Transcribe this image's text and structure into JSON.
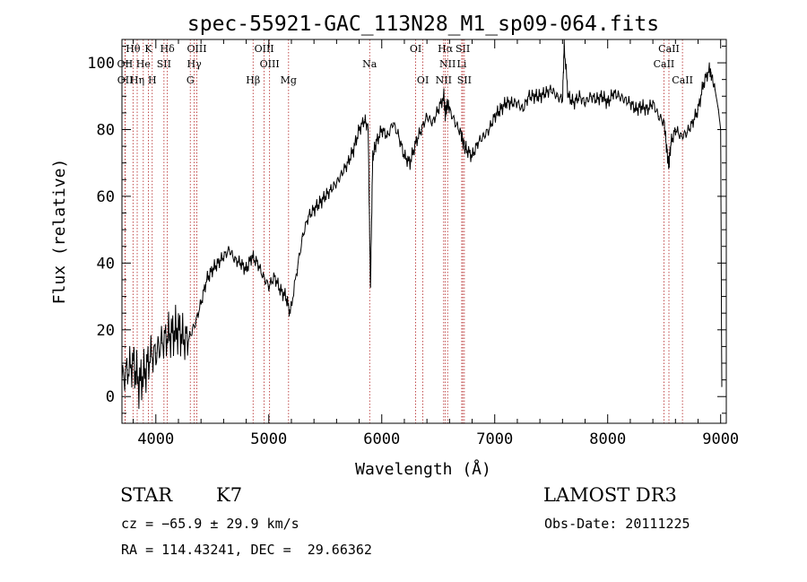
{
  "chart_data": {
    "type": "line",
    "title": "spec-55921-GAC_113N28_M1_sp09-064.fits",
    "xlabel": "Wavelength (Å)",
    "ylabel": "Flux (relative)",
    "xlim": [
      3700,
      9050
    ],
    "ylim": [
      -8,
      107
    ],
    "xticks": [
      4000,
      5000,
      6000,
      7000,
      8000,
      9000
    ],
    "yticks": [
      0,
      20,
      40,
      60,
      80,
      100
    ],
    "series": [
      {
        "name": "Spectrum",
        "color": "#000000",
        "x": [
          3700,
          3750,
          3800,
          3850,
          3900,
          3950,
          4000,
          4050,
          4100,
          4150,
          4200,
          4250,
          4300,
          4350,
          4400,
          4450,
          4500,
          4550,
          4600,
          4650,
          4700,
          4750,
          4800,
          4850,
          4900,
          4950,
          5000,
          5050,
          5100,
          5150,
          5190,
          5250,
          5300,
          5350,
          5400,
          5450,
          5500,
          5550,
          5600,
          5650,
          5700,
          5750,
          5800,
          5850,
          5880,
          5890,
          5900,
          5920,
          5950,
          6000,
          6050,
          6100,
          6150,
          6200,
          6250,
          6300,
          6350,
          6400,
          6450,
          6500,
          6550,
          6563,
          6580,
          6600,
          6650,
          6700,
          6720,
          6750,
          6800,
          6850,
          6900,
          6950,
          7000,
          7050,
          7100,
          7150,
          7200,
          7250,
          7300,
          7350,
          7400,
          7450,
          7500,
          7550,
          7600,
          7615,
          7650,
          7700,
          7750,
          7800,
          7850,
          7900,
          7950,
          8000,
          8050,
          8100,
          8150,
          8200,
          8250,
          8300,
          8350,
          8400,
          8450,
          8500,
          8520,
          8540,
          8560,
          8600,
          8650,
          8700,
          8750,
          8800,
          8850,
          8900,
          8920,
          8950,
          8980,
          9000,
          9010
        ],
        "y": [
          5,
          8,
          10,
          4,
          7,
          12,
          13,
          16,
          18,
          19,
          20,
          17,
          18,
          22,
          28,
          35,
          38,
          40,
          42,
          44,
          41,
          40,
          38,
          42,
          40,
          36,
          33,
          36,
          32,
          30,
          25,
          38,
          48,
          54,
          56,
          58,
          60,
          62,
          64,
          67,
          70,
          74,
          80,
          83,
          80,
          55,
          33,
          72,
          76,
          80,
          78,
          82,
          78,
          72,
          70,
          76,
          80,
          84,
          82,
          86,
          90,
          84,
          88,
          86,
          82,
          79,
          76,
          74,
          72,
          76,
          78,
          80,
          84,
          86,
          88,
          88,
          88,
          86,
          90,
          90,
          90,
          91,
          92,
          90,
          89,
          105,
          90,
          88,
          90,
          88,
          90,
          89,
          90,
          88,
          91,
          90,
          89,
          88,
          86,
          87,
          86,
          88,
          84,
          82,
          75,
          69,
          76,
          80,
          78,
          79,
          82,
          86,
          94,
          98,
          96,
          92,
          86,
          80,
          3
        ]
      }
    ],
    "spectral_lines": [
      {
        "label": "Hθ",
        "x": 3798,
        "row": 0
      },
      {
        "label": "K",
        "x": 3934,
        "row": 0
      },
      {
        "label": "Hδ",
        "x": 4102,
        "row": 0
      },
      {
        "label": "OIII",
        "x": 4363,
        "row": 0
      },
      {
        "label": "OIII",
        "x": 4959,
        "row": 0
      },
      {
        "label": "OI",
        "x": 6300,
        "row": 0
      },
      {
        "label": "Hα",
        "x": 6563,
        "row": 0
      },
      {
        "label": "SII",
        "x": 6717,
        "row": 0
      },
      {
        "label": "CaII",
        "x": 8542,
        "row": 0
      },
      {
        "label": "OII",
        "x": 3727,
        "row": 1
      },
      {
        "label": "He",
        "x": 3889,
        "row": 1
      },
      {
        "label": "SII",
        "x": 4072,
        "row": 1
      },
      {
        "label": "Hγ",
        "x": 4340,
        "row": 1
      },
      {
        "label": "OIII",
        "x": 5007,
        "row": 1
      },
      {
        "label": "Na",
        "x": 5893,
        "row": 1
      },
      {
        "label": "NII",
        "x": 6583,
        "row": 1
      },
      {
        "label": "Li",
        "x": 6708,
        "row": 1
      },
      {
        "label": "CaII",
        "x": 8498,
        "row": 1
      },
      {
        "label": "OII",
        "x": 3729,
        "row": 2
      },
      {
        "label": "Hη",
        "x": 3835,
        "row": 2
      },
      {
        "label": "H",
        "x": 3968,
        "row": 2
      },
      {
        "label": "G",
        "x": 4305,
        "row": 2
      },
      {
        "label": "Hβ",
        "x": 4861,
        "row": 2
      },
      {
        "label": "Mg",
        "x": 5175,
        "row": 2
      },
      {
        "label": "OI",
        "x": 6364,
        "row": 2
      },
      {
        "label": "NII",
        "x": 6548,
        "row": 2
      },
      {
        "label": "SII",
        "x": 6731,
        "row": 2
      },
      {
        "label": "CaII",
        "x": 8662,
        "row": 2
      }
    ],
    "line_color": "#b22222"
  },
  "info": {
    "class_label": "STAR",
    "subclass": "K7",
    "cz": "cz = −65.9 ± 29.9 km/s",
    "coords": "RA = 114.43241, DEC =  29.66362",
    "survey": "LAMOST DR3",
    "obs_date": "Obs-Date: 20111225"
  }
}
